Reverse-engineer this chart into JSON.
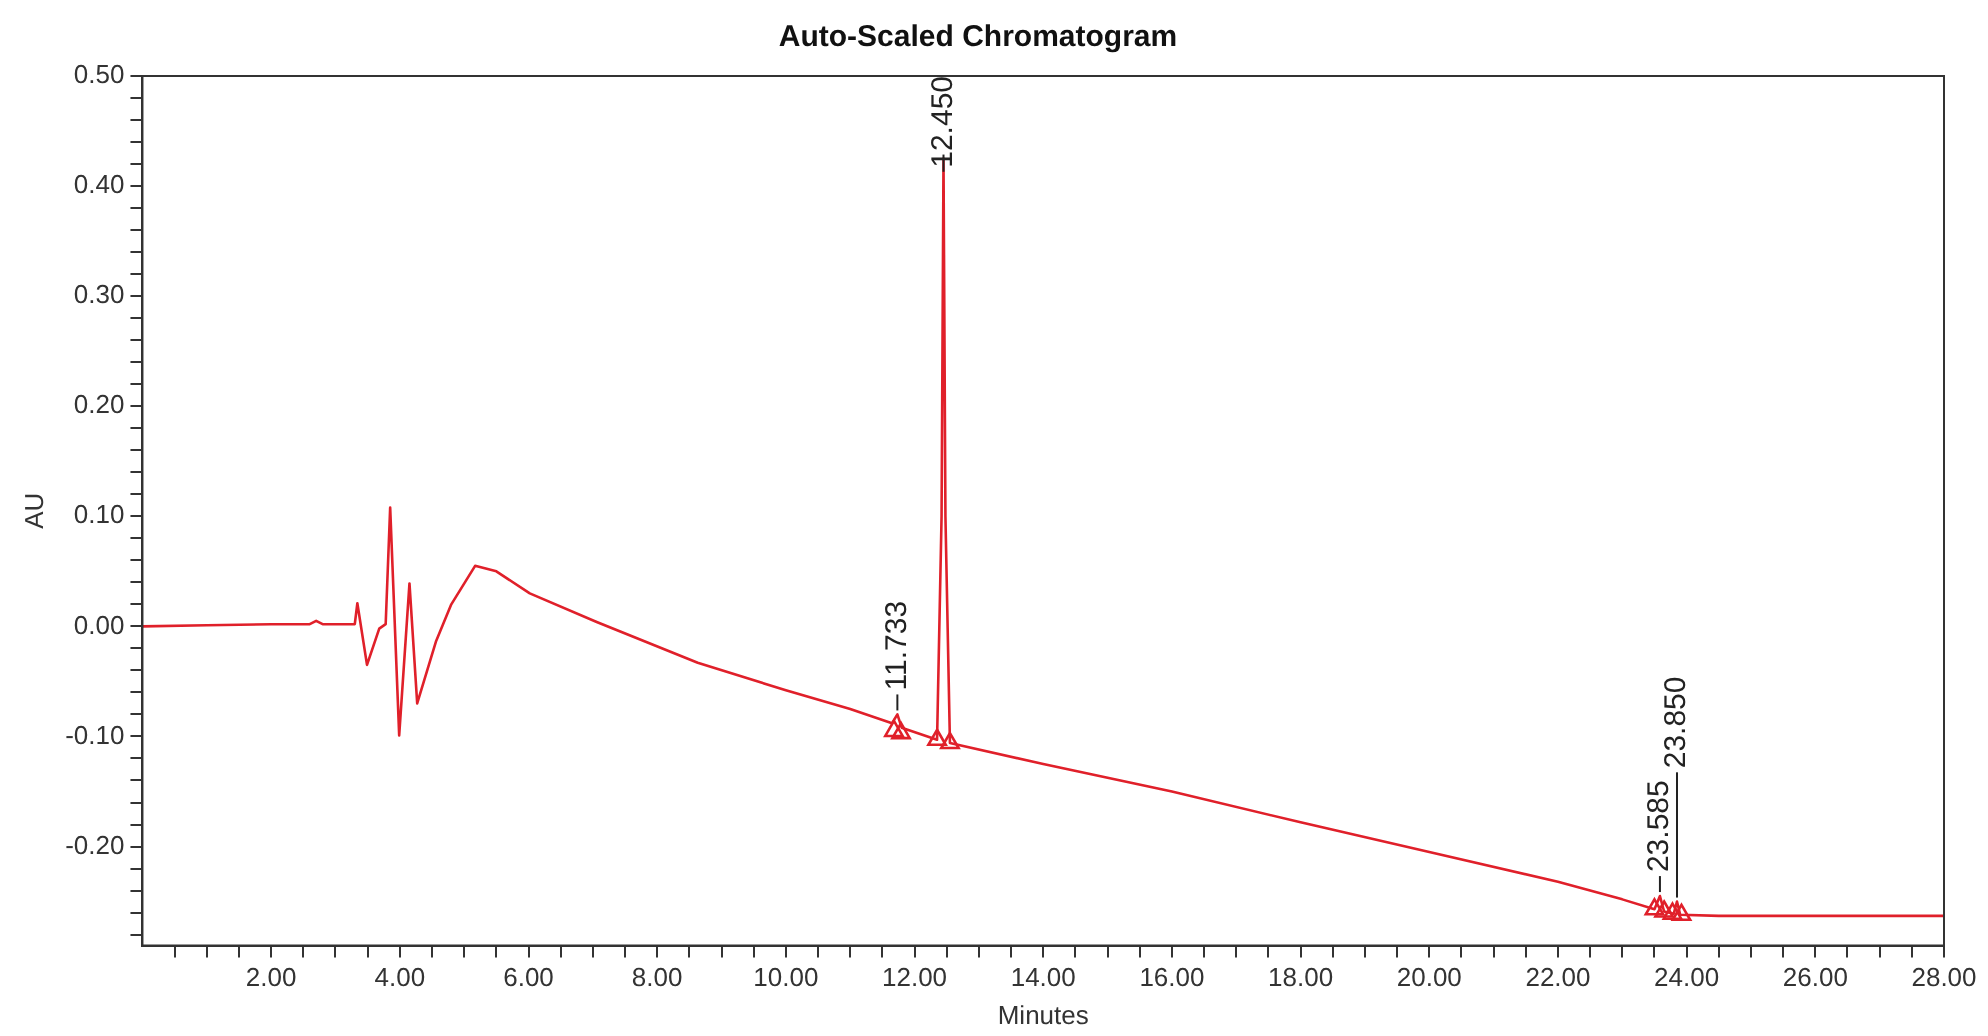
{
  "chart_data": {
    "type": "line",
    "title": "Auto-Scaled Chromatogram",
    "xlabel": "Minutes",
    "ylabel": "AU",
    "xlim": [
      0,
      28
    ],
    "ylim": [
      -0.29,
      0.5
    ],
    "xticks": [
      {
        "value": 0.5,
        "label": null
      },
      {
        "value": 1,
        "label": null
      },
      {
        "value": 1.5,
        "label": null
      },
      {
        "value": 2,
        "label": "2.00"
      },
      {
        "value": 2.5,
        "label": null
      },
      {
        "value": 3,
        "label": null
      },
      {
        "value": 3.5,
        "label": null
      },
      {
        "value": 4,
        "label": "4.00"
      },
      {
        "value": 4.5,
        "label": null
      },
      {
        "value": 5,
        "label": null
      },
      {
        "value": 5.5,
        "label": null
      },
      {
        "value": 6,
        "label": "6.00"
      },
      {
        "value": 6.5,
        "label": null
      },
      {
        "value": 7,
        "label": null
      },
      {
        "value": 7.5,
        "label": null
      },
      {
        "value": 8,
        "label": "8.00"
      },
      {
        "value": 8.5,
        "label": null
      },
      {
        "value": 9,
        "label": null
      },
      {
        "value": 9.5,
        "label": null
      },
      {
        "value": 10,
        "label": "10.00"
      },
      {
        "value": 10.5,
        "label": null
      },
      {
        "value": 11,
        "label": null
      },
      {
        "value": 11.5,
        "label": null
      },
      {
        "value": 12,
        "label": "12.00"
      },
      {
        "value": 12.5,
        "label": null
      },
      {
        "value": 13,
        "label": null
      },
      {
        "value": 13.5,
        "label": null
      },
      {
        "value": 14,
        "label": "14.00"
      },
      {
        "value": 14.5,
        "label": null
      },
      {
        "value": 15,
        "label": null
      },
      {
        "value": 15.5,
        "label": null
      },
      {
        "value": 16,
        "label": "16.00"
      },
      {
        "value": 16.5,
        "label": null
      },
      {
        "value": 17,
        "label": null
      },
      {
        "value": 17.5,
        "label": null
      },
      {
        "value": 18,
        "label": "18.00"
      },
      {
        "value": 18.5,
        "label": null
      },
      {
        "value": 19,
        "label": null
      },
      {
        "value": 19.5,
        "label": null
      },
      {
        "value": 20,
        "label": "20.00"
      },
      {
        "value": 20.5,
        "label": null
      },
      {
        "value": 21,
        "label": null
      },
      {
        "value": 21.5,
        "label": null
      },
      {
        "value": 22,
        "label": "22.00"
      },
      {
        "value": 22.5,
        "label": null
      },
      {
        "value": 23,
        "label": null
      },
      {
        "value": 23.5,
        "label": null
      },
      {
        "value": 24,
        "label": "24.00"
      },
      {
        "value": 24.5,
        "label": null
      },
      {
        "value": 25,
        "label": null
      },
      {
        "value": 25.5,
        "label": null
      },
      {
        "value": 26,
        "label": "26.00"
      },
      {
        "value": 26.5,
        "label": null
      },
      {
        "value": 27,
        "label": null
      },
      {
        "value": 27.5,
        "label": null
      },
      {
        "value": 28,
        "label": "28.00"
      }
    ],
    "yticks": [
      {
        "value": -0.28,
        "label": null
      },
      {
        "value": -0.26,
        "label": null
      },
      {
        "value": -0.24,
        "label": null
      },
      {
        "value": -0.22,
        "label": null
      },
      {
        "value": -0.2,
        "label": "-0.20"
      },
      {
        "value": -0.18,
        "label": null
      },
      {
        "value": -0.16,
        "label": null
      },
      {
        "value": -0.14,
        "label": null
      },
      {
        "value": -0.12,
        "label": null
      },
      {
        "value": -0.1,
        "label": "-0.10"
      },
      {
        "value": -0.08,
        "label": null
      },
      {
        "value": -0.06,
        "label": null
      },
      {
        "value": -0.04,
        "label": null
      },
      {
        "value": -0.02,
        "label": null
      },
      {
        "value": 0,
        "label": "0.00"
      },
      {
        "value": 0.02,
        "label": null
      },
      {
        "value": 0.04,
        "label": null
      },
      {
        "value": 0.06,
        "label": null
      },
      {
        "value": 0.08,
        "label": null
      },
      {
        "value": 0.1,
        "label": "0.10"
      },
      {
        "value": 0.12,
        "label": null
      },
      {
        "value": 0.14,
        "label": null
      },
      {
        "value": 0.16,
        "label": null
      },
      {
        "value": 0.18,
        "label": null
      },
      {
        "value": 0.2,
        "label": "0.20"
      },
      {
        "value": 0.22,
        "label": null
      },
      {
        "value": 0.24,
        "label": null
      },
      {
        "value": 0.26,
        "label": null
      },
      {
        "value": 0.28,
        "label": null
      },
      {
        "value": 0.3,
        "label": "0.30"
      },
      {
        "value": 0.32,
        "label": null
      },
      {
        "value": 0.34,
        "label": null
      },
      {
        "value": 0.36,
        "label": null
      },
      {
        "value": 0.38,
        "label": null
      },
      {
        "value": 0.4,
        "label": "0.40"
      },
      {
        "value": 0.42,
        "label": null
      },
      {
        "value": 0.44,
        "label": null
      },
      {
        "value": 0.46,
        "label": null
      },
      {
        "value": 0.48,
        "label": null
      },
      {
        "value": 0.5,
        "label": "0.50"
      }
    ],
    "grid": false,
    "legend": false,
    "series": [
      {
        "type": "line",
        "color": "#e0202a",
        "marker": "none",
        "x": [
          0,
          1,
          2,
          2.6,
          2.7,
          2.8,
          3.3,
          3.34,
          3.49,
          3.68,
          3.78,
          3.85,
          3.99,
          4.15,
          4.27,
          4.56,
          4.8,
          5.17,
          5.5,
          6.02,
          7.06,
          8.63,
          10,
          11,
          11.65,
          11.733,
          11.8,
          12.35,
          12.42,
          12.45,
          12.48,
          12.55,
          14,
          16,
          18,
          20,
          22,
          23,
          23.5,
          23.585,
          23.65,
          23.8,
          23.85,
          23.9,
          24.5,
          26,
          28
        ],
        "values": [
          0,
          0.001,
          0.002,
          0.002,
          0.005,
          0.002,
          0.002,
          0.021,
          -0.035,
          -0.002,
          0.002,
          0.108,
          -0.099,
          0.039,
          -0.07,
          -0.014,
          0.02,
          0.055,
          0.05,
          0.03,
          0.004,
          -0.033,
          -0.058,
          -0.075,
          -0.088,
          -0.08,
          -0.092,
          -0.103,
          0.1,
          0.425,
          0.1,
          -0.106,
          -0.125,
          -0.15,
          -0.178,
          -0.205,
          -0.232,
          -0.248,
          -0.257,
          -0.245,
          -0.259,
          -0.261,
          -0.25,
          -0.262,
          -0.263,
          -0.263,
          -0.263
        ]
      },
      {
        "type": "scatter",
        "color": "#e0202a",
        "marker": "triangle",
        "x": [
          11.68,
          11.79,
          12.35,
          12.55,
          23.5,
          23.65,
          23.78,
          23.92
        ],
        "values": [
          -0.095,
          -0.097,
          -0.103,
          -0.106,
          -0.257,
          -0.259,
          -0.261,
          -0.262
        ]
      }
    ],
    "annotations": [
      {
        "text": "11.733",
        "x": 11.733,
        "y": -0.08
      },
      {
        "text": "12.450",
        "x": 12.45,
        "y": 0.425
      },
      {
        "text": "23.585",
        "x": 23.585,
        "y": -0.245
      },
      {
        "text": "23.850",
        "x": 23.85,
        "y": -0.25
      }
    ]
  }
}
